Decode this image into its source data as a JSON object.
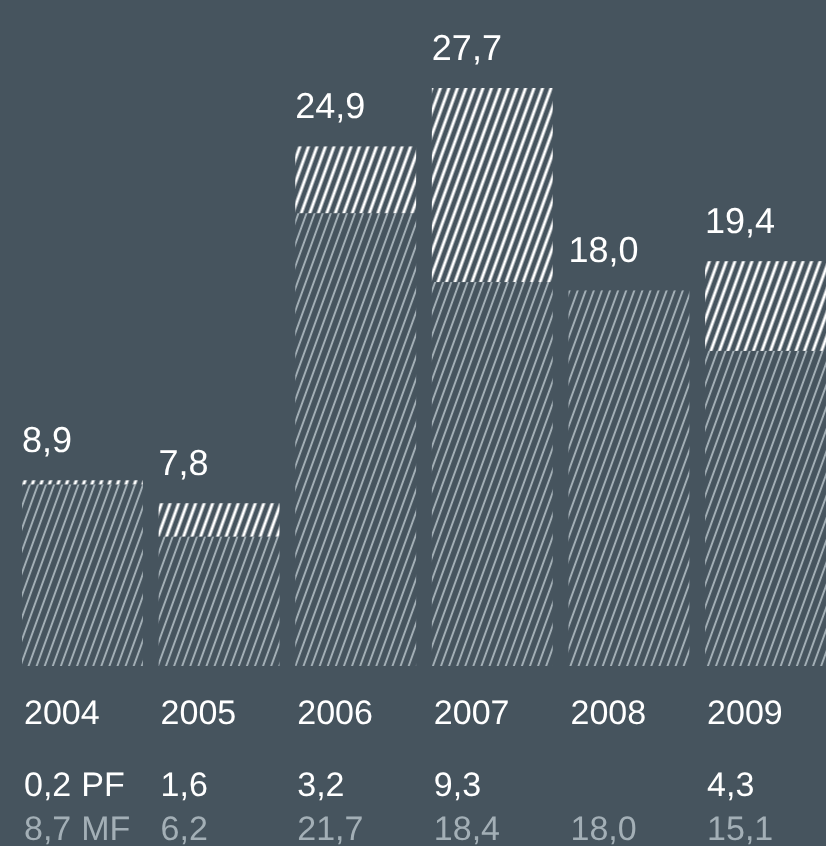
{
  "chart_data": {
    "type": "bar",
    "stacked": true,
    "categories": [
      "2004",
      "2005",
      "2006",
      "2007",
      "2008",
      "2009"
    ],
    "series": [
      {
        "name": "MF",
        "color": "#a3afb6",
        "values": [
          8.7,
          6.2,
          21.7,
          18.4,
          18.0,
          15.1
        ],
        "value_labels": [
          "8,7",
          "6,2",
          "21,7",
          "18,4",
          "18,0",
          "15,1"
        ]
      },
      {
        "name": "PF",
        "color": "#ffffff",
        "values": [
          0.2,
          1.6,
          3.2,
          9.3,
          null,
          4.3
        ],
        "value_labels": [
          "0,2",
          "1,6",
          "3,2",
          "9,3",
          null,
          "4,3"
        ]
      }
    ],
    "totals": [
      "8,9",
      "7,8",
      "24,9",
      "27,7",
      "18,0",
      "19,4"
    ]
  }
}
